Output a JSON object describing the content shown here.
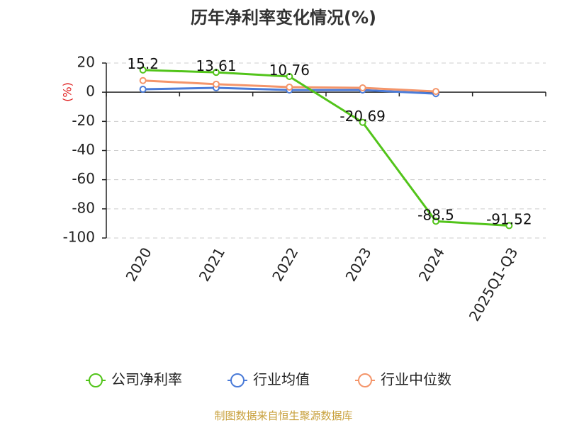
{
  "chart_data": {
    "type": "line",
    "title": "历年净利率变化情况(%)",
    "ylabel": "(%)",
    "xlabel": "",
    "categories": [
      "2020",
      "2021",
      "2022",
      "2023",
      "2024",
      "2025Q1-Q3"
    ],
    "ylim": [
      -100,
      20
    ],
    "yticks": [
      20,
      0,
      -20,
      -40,
      -60,
      -80,
      -100
    ],
    "grid": true,
    "legend_position": "bottom",
    "series": [
      {
        "name": "公司净利率",
        "color": "#52c41a",
        "values": [
          15.2,
          13.61,
          10.76,
          -20.69,
          -88.5,
          -91.52
        ],
        "labels": [
          "15.2",
          "13.61",
          "10.76",
          "-20.69",
          "-88.5",
          "-91.52"
        ]
      },
      {
        "name": "行业均值",
        "color": "#4a7bd8",
        "values": [
          2.0,
          3.0,
          1.5,
          1.5,
          -1.0,
          null
        ]
      },
      {
        "name": "行业中位数",
        "color": "#f4956a",
        "values": [
          8.0,
          5.5,
          3.5,
          3.0,
          0.5,
          null
        ]
      }
    ]
  },
  "source": "制图数据来自恒生聚源数据库"
}
